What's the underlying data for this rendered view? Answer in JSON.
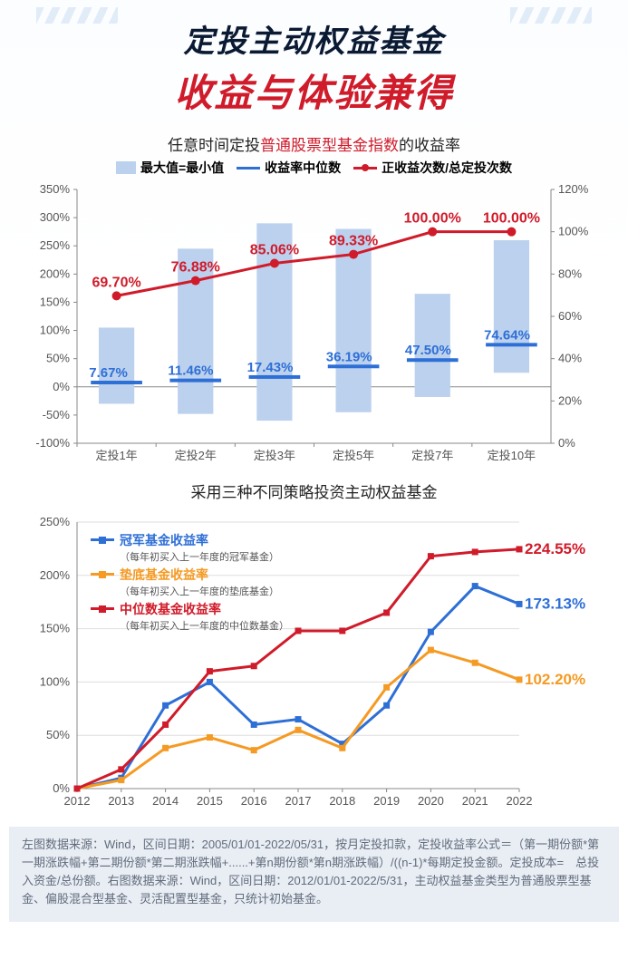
{
  "header": {
    "line1": "定投主动权益基金",
    "line2": "收益与体验兼得"
  },
  "chart1": {
    "type": "bar+line-dual-axis",
    "title_pre": "任意时间定投",
    "title_hl": "普通股票型基金指数",
    "title_post": "的收益率",
    "legend": {
      "bar": "最大值=最小值",
      "blue": "收益率中位数",
      "red": "正收益次数/总定投次数"
    },
    "categories": [
      "定投1年",
      "定投2年",
      "定投3年",
      "定投5年",
      "定投7年",
      "定投10年"
    ],
    "left_axis": {
      "min": -100,
      "max": 350,
      "step": 50,
      "unit": "%"
    },
    "right_axis": {
      "min": 0,
      "max": 120,
      "step": 20,
      "unit": "%"
    },
    "bars": {
      "low": [
        -30,
        -48,
        -60,
        -45,
        -18,
        25
      ],
      "high": [
        105,
        245,
        290,
        280,
        165,
        260
      ],
      "color": "#bcd1ee",
      "width": 0.45
    },
    "median_blue": {
      "values": [
        7.67,
        11.46,
        17.43,
        36.19,
        47.5,
        74.64
      ],
      "labels": [
        "7.67%",
        "11.46%",
        "17.43%",
        "36.19%",
        "47.50%",
        "74.64%"
      ],
      "color": "#2e6fd6",
      "tick_width": 0.65,
      "tick_thickness": 4
    },
    "ratio_red": {
      "values": [
        69.7,
        76.88,
        85.06,
        89.33,
        100.0,
        100.0
      ],
      "labels": [
        "69.70%",
        "76.88%",
        "85.06%",
        "89.33%",
        "100.00%",
        "100.00%"
      ],
      "color": "#d01b2a",
      "line_width": 3,
      "marker_r": 5
    },
    "background": "#ffffff"
  },
  "chart2": {
    "type": "line",
    "title": "采用三种不同策略投资主动权益基金",
    "x": [
      "2012",
      "2013",
      "2014",
      "2015",
      "2016",
      "2017",
      "2018",
      "2019",
      "2020",
      "2021",
      "2022"
    ],
    "y_axis": {
      "min": 0,
      "max": 250,
      "step": 50,
      "unit": "%"
    },
    "series": [
      {
        "key": "champion",
        "name": "冠军基金收益率",
        "sub": "（每年初买入上一年度的冠军基金）",
        "color": "#2e6fd6",
        "marker": "square",
        "values": [
          0,
          10,
          78,
          100,
          60,
          65,
          42,
          78,
          147,
          190,
          173.13
        ],
        "end_label": "173.13%"
      },
      {
        "key": "loser",
        "name": "垫底基金收益率",
        "sub": "（每年初买入上一年度的垫底基金）",
        "color": "#f59a23",
        "marker": "square",
        "values": [
          0,
          8,
          38,
          48,
          36,
          55,
          38,
          95,
          130,
          118,
          102.2
        ],
        "end_label": "102.20%"
      },
      {
        "key": "median",
        "name": "中位数基金收益率",
        "sub": "（每年初买入上一年度的中位数基金）",
        "color": "#d01b2a",
        "marker": "square",
        "values": [
          0,
          18,
          60,
          110,
          115,
          148,
          148,
          165,
          218,
          222,
          224.55
        ],
        "end_label": "224.55%"
      }
    ],
    "line_width": 3,
    "marker_size": 7,
    "background": "#ffffff",
    "grid_color": "#dddddd"
  },
  "footnote": "左图数据来源：Wind，区间日期：2005/01/01-2022/05/31，按月定投扣款，定投收益率公式＝（第一期份额*第一期涨跌幅+第二期份额*第二期涨跌幅+......+第n期份额*第n期涨跌幅）/((n-1)*每期定投金额。定投成本=　总投入资金/总份额。右图数据来源：Wind，区间日期：2012/01/01-2022/5/31，主动权益基金类型为普通股票型基金、偏股混合型基金、灵活配置型基金，只统计初始基金。"
}
